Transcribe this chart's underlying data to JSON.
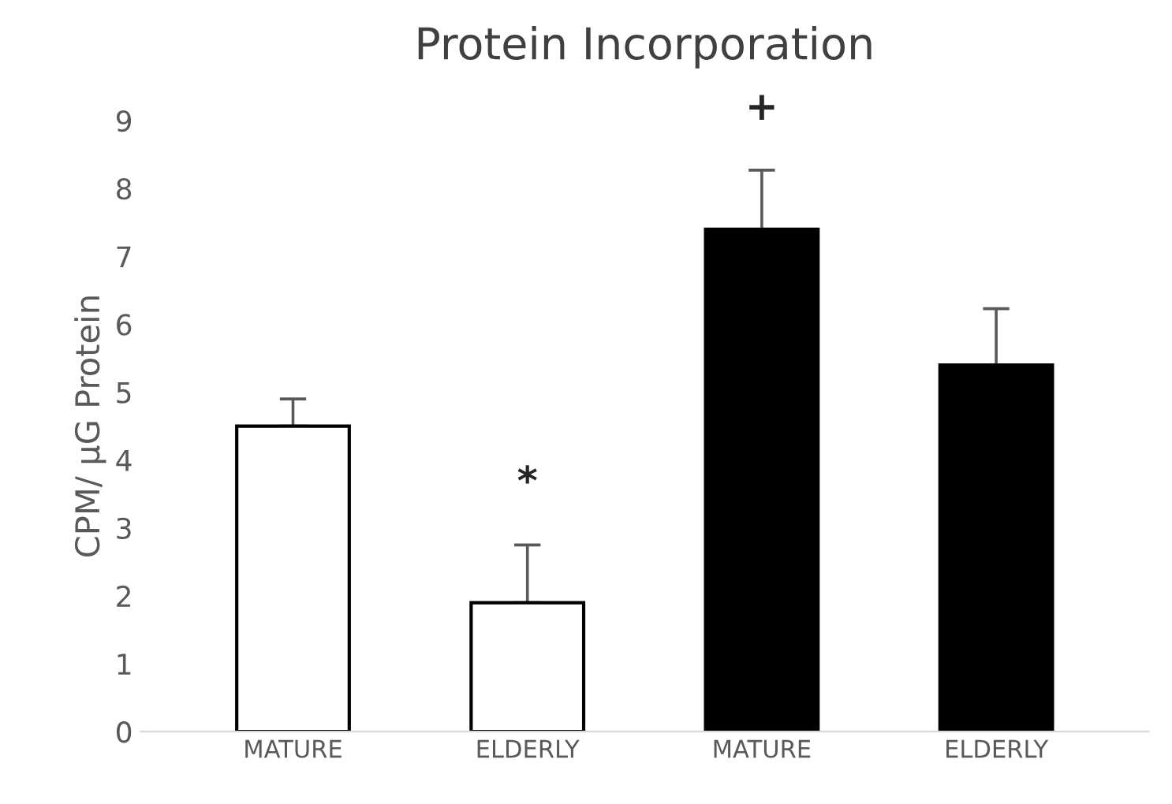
{
  "chart_data": {
    "type": "bar",
    "title": "Protein Incorporation",
    "ylabel": "CPM/ µG Protein",
    "categories": [
      "MATURE",
      "ELDERLY",
      "MATURE",
      "ELDERLY"
    ],
    "values": [
      4.5,
      1.9,
      7.4,
      5.4
    ],
    "colors": [
      "#ffffff",
      "#ffffff",
      "#000000",
      "#000000"
    ],
    "errors": [
      [
        4.5,
        4.9
      ],
      [
        1.9,
        2.75
      ],
      [
        7.4,
        8.27
      ],
      [
        5.4,
        6.23
      ]
    ],
    "value_labels": [
      null,
      "*",
      "+",
      null
    ],
    "ylim": [
      0,
      9
    ],
    "yticks": [
      0,
      1,
      2,
      3,
      4,
      5,
      6,
      7,
      8,
      9
    ],
    "grid": false,
    "legend": false
  }
}
